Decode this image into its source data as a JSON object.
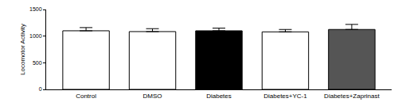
{
  "chart_data": {
    "type": "bar",
    "y_label": "Locomotor Activity",
    "categories": [
      "Control",
      "DMSO",
      "Diabetes",
      "Diabetes+YC-1",
      "Diabetes+Zaprinast"
    ],
    "values": [
      1100,
      1085,
      1100,
      1080,
      1125
    ],
    "errors": [
      60,
      55,
      50,
      45,
      95
    ],
    "colors": [
      "#ffffff",
      "#ffffff",
      "#000000",
      "#ffffff",
      "#555555"
    ],
    "ylim": [
      0,
      1500
    ],
    "yticks": [
      0,
      500,
      1000,
      1500
    ],
    "grid": false
  }
}
